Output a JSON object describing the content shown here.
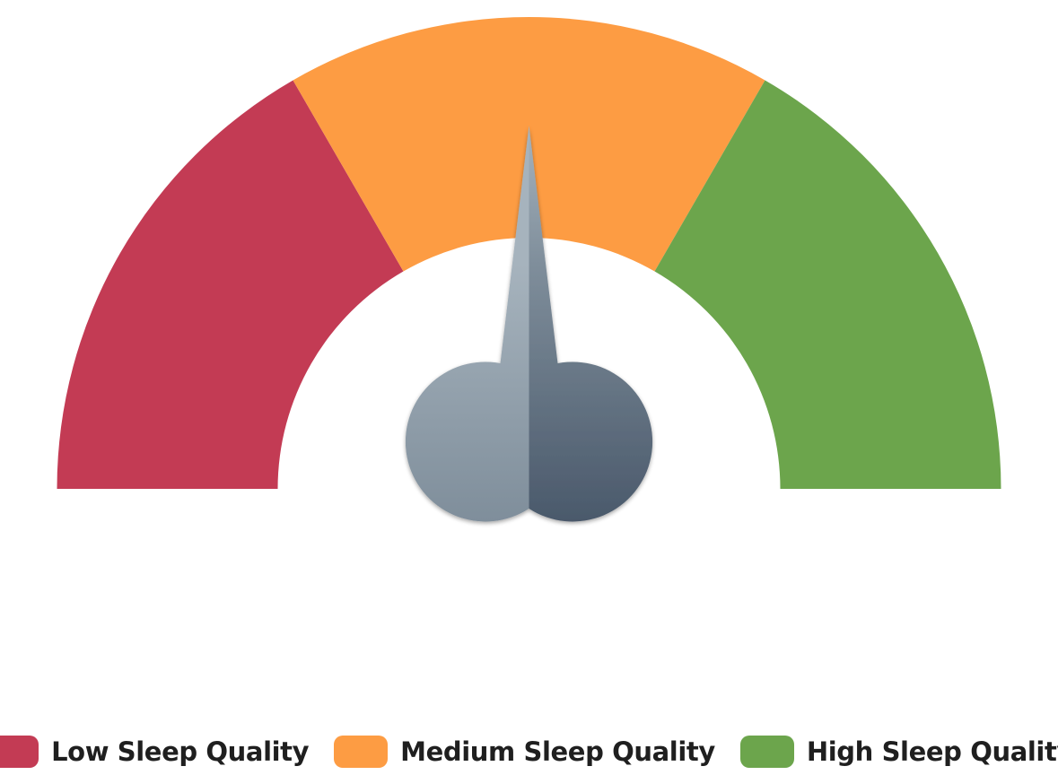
{
  "chart_data": {
    "type": "gauge",
    "range": [
      0,
      3
    ],
    "needle_value": 1.5,
    "bands": [
      {
        "name": "Low Sleep Quality",
        "from": 0,
        "to": 1,
        "color": "#c33b54"
      },
      {
        "name": "Medium Sleep Quality",
        "from": 1,
        "to": 2,
        "color": "#fd9c43"
      },
      {
        "name": "High Sleep Quality",
        "from": 2,
        "to": 3,
        "color": "#6ca54c"
      }
    ],
    "legend_position": "bottom"
  },
  "legend": [
    {
      "label": "Low Sleep Quality",
      "color": "#c33b54"
    },
    {
      "label": "Medium Sleep Quality",
      "color": "#fd9c43"
    },
    {
      "label": "High Sleep Quality",
      "color": "#6ca54c"
    }
  ],
  "needle_colors": {
    "light": "#7f8e9b",
    "dark": "#4a596b",
    "tip": "#a6b3bd"
  }
}
